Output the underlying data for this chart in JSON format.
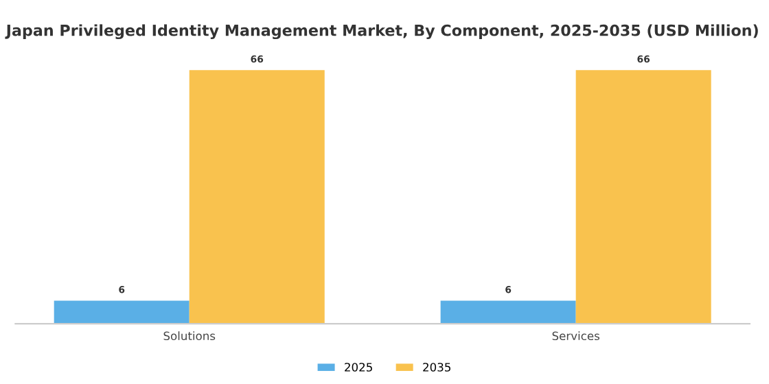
{
  "chart_data": {
    "type": "bar",
    "title": "Japan Privileged Identity Management Market, By Component, 2025-2035 (USD Million)",
    "categories": [
      "Solutions",
      "Services"
    ],
    "series": [
      {
        "name": "2025",
        "color": "#5aafe6",
        "values": [
          6,
          6
        ]
      },
      {
        "name": "2035",
        "color": "#f9c24e",
        "values": [
          66,
          66
        ]
      }
    ],
    "data_labels": true,
    "legend": "bottom",
    "grid": false,
    "tick_labels": "x"
  }
}
